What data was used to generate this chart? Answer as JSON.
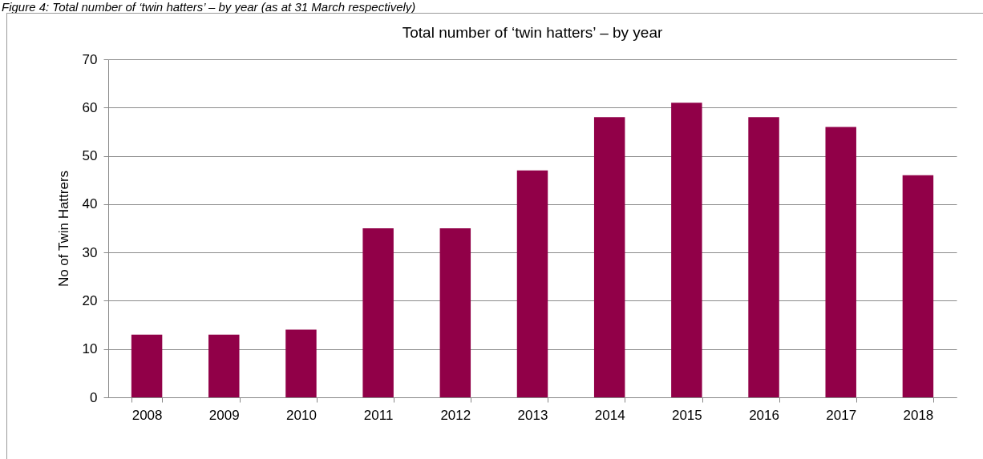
{
  "chart_data": {
    "type": "bar",
    "title": "Total number of ‘twin hatters’ – by year",
    "ylabel": "No of Twin Hattrers",
    "annotations": [
      "Figure 4: Total number of ‘twin hatters’ – by year (as at 31 March respectively)"
    ],
    "categories": [
      "2008",
      "2009",
      "2010",
      "2011",
      "2012",
      "2013",
      "2014",
      "2015",
      "2016",
      "2017",
      "2018"
    ],
    "values": [
      13,
      13,
      14,
      35,
      35,
      47,
      58,
      61,
      58,
      56,
      46
    ],
    "color": "#910048",
    "ylim": [
      0,
      70
    ],
    "yticks": [
      0,
      10,
      20,
      30,
      40,
      50,
      60,
      70
    ],
    "grid": "y"
  }
}
